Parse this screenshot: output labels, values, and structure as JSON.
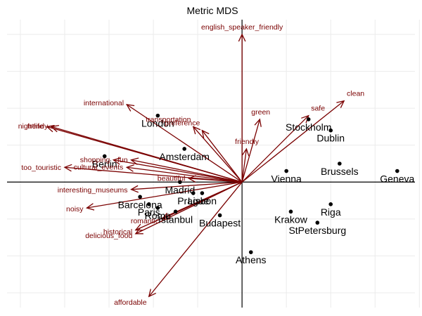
{
  "chart_data": {
    "type": "scatter",
    "title": "Metric MDS",
    "xlabel": "",
    "ylabel": "",
    "xlim": [
      -0.53,
      0.39
    ],
    "ylim": [
      -0.34,
      0.44
    ],
    "grid": true,
    "colors": {
      "points": "#000000",
      "arrows": "#7a0000",
      "grid": "#ebebeb"
    },
    "cities": [
      {
        "name": "London",
        "x": -0.19,
        "y": 0.18
      },
      {
        "name": "Amsterdam",
        "x": -0.13,
        "y": 0.09
      },
      {
        "name": "Berlin",
        "x": -0.31,
        "y": 0.07
      },
      {
        "name": "Madrid",
        "x": -0.14,
        "y": 0.0
      },
      {
        "name": "Barcelona",
        "x": -0.23,
        "y": -0.04
      },
      {
        "name": "Prague",
        "x": -0.11,
        "y": -0.03
      },
      {
        "name": "Lisbon",
        "x": -0.09,
        "y": -0.03
      },
      {
        "name": "Paris",
        "x": -0.21,
        "y": -0.06
      },
      {
        "name": "Rome",
        "x": -0.19,
        "y": -0.07
      },
      {
        "name": "Istanbul",
        "x": -0.15,
        "y": -0.08
      },
      {
        "name": "Budapest",
        "x": -0.05,
        "y": -0.09
      },
      {
        "name": "Athens",
        "x": 0.02,
        "y": -0.19
      },
      {
        "name": "Vienna",
        "x": 0.1,
        "y": 0.03
      },
      {
        "name": "Stockholm",
        "x": 0.15,
        "y": 0.17
      },
      {
        "name": "Dublin",
        "x": 0.2,
        "y": 0.14
      },
      {
        "name": "Brussels",
        "x": 0.22,
        "y": 0.05
      },
      {
        "name": "Geneva",
        "x": 0.35,
        "y": 0.03
      },
      {
        "name": "Riga",
        "x": 0.2,
        "y": -0.06
      },
      {
        "name": "Krakow",
        "x": 0.11,
        "y": -0.08
      },
      {
        "name": "StPetersburg",
        "x": 0.17,
        "y": -0.11
      }
    ],
    "attributes": [
      {
        "name": "english_speaker_friendly",
        "x": 0.0,
        "y": 0.4
      },
      {
        "name": "international",
        "x": -0.26,
        "y": 0.21
      },
      {
        "name": "trendy",
        "x": -0.43,
        "y": 0.15
      },
      {
        "name": "nightlife",
        "x": -0.44,
        "y": 0.15
      },
      {
        "name": "transportation",
        "x": -0.11,
        "y": 0.15
      },
      {
        "name": "preference",
        "x": -0.09,
        "y": 0.14
      },
      {
        "name": "green",
        "x": 0.04,
        "y": 0.17
      },
      {
        "name": "safe",
        "x": 0.15,
        "y": 0.18
      },
      {
        "name": "clean",
        "x": 0.23,
        "y": 0.22
      },
      {
        "name": "friendly",
        "x": 0.01,
        "y": 0.09
      },
      {
        "name": "shopping",
        "x": -0.29,
        "y": 0.06
      },
      {
        "name": "fun",
        "x": -0.25,
        "y": 0.06
      },
      {
        "name": "cultural_events",
        "x": -0.26,
        "y": 0.04
      },
      {
        "name": "too_touristic",
        "x": -0.4,
        "y": 0.04
      },
      {
        "name": "beautiful",
        "x": -0.12,
        "y": 0.01
      },
      {
        "name": "interesting_museums",
        "x": -0.25,
        "y": -0.02
      },
      {
        "name": "noisy",
        "x": -0.35,
        "y": -0.07
      },
      {
        "name": "romantic",
        "x": -0.18,
        "y": -0.1
      },
      {
        "name": "historical",
        "x": -0.24,
        "y": -0.13
      },
      {
        "name": "delicious_food",
        "x": -0.24,
        "y": -0.14
      },
      {
        "name": "affordable",
        "x": -0.21,
        "y": -0.31
      }
    ]
  }
}
